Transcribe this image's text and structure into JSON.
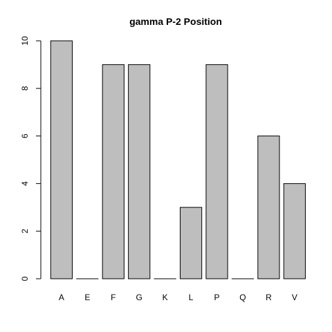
{
  "chart_data": {
    "type": "bar",
    "title": "gamma P-2 Position",
    "categories": [
      "A",
      "E",
      "F",
      "G",
      "K",
      "L",
      "P",
      "Q",
      "R",
      "V"
    ],
    "values": [
      10,
      0,
      9,
      9,
      0,
      3,
      9,
      0,
      6,
      4
    ],
    "xlabel": "",
    "ylabel": "",
    "ylim": [
      0,
      10
    ],
    "yticks": [
      0,
      2,
      4,
      6,
      8,
      10
    ],
    "grid": false,
    "colors": {
      "bar_fill": "#bebebe",
      "bar_stroke": "#000000"
    }
  }
}
